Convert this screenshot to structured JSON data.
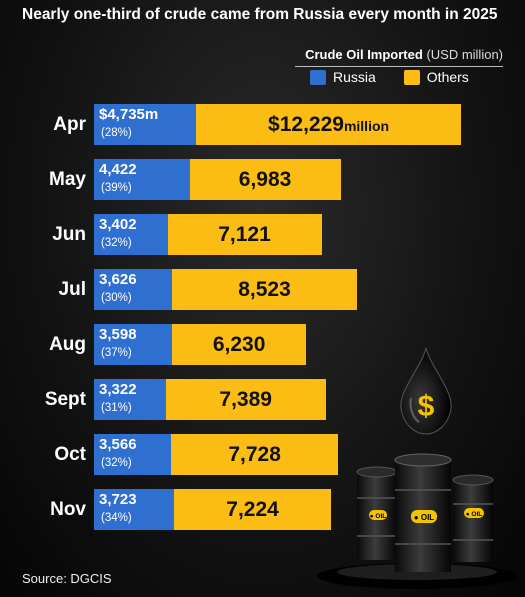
{
  "chart_data": {
    "type": "bar",
    "stacked": true,
    "orientation": "horizontal",
    "title": "Nearly one-third of crude came from Russia every month in 2025",
    "legend_title": "Crude Oil Imported",
    "legend_unit": "(USD million)",
    "legend_placement": "top-right",
    "categories": [
      "Apr",
      "May",
      "Jun",
      "Jul",
      "Aug",
      "Sept",
      "Oct",
      "Nov"
    ],
    "series": [
      {
        "name": "Russia",
        "color": "#2f6fd0",
        "values": [
          4735,
          4422,
          3402,
          3626,
          3598,
          3322,
          3566,
          3723
        ],
        "labels": [
          "$4,735m",
          "4,422",
          "3,402",
          "3,626",
          "3,598",
          "3,322",
          "3,566",
          "3,723"
        ],
        "share_labels": [
          "(28%)",
          "(39%)",
          "(32%)",
          "(30%)",
          "(37%)",
          "(31%)",
          "(32%)",
          "(34%)"
        ]
      },
      {
        "name": "Others",
        "color": "#fbbc13",
        "values": [
          12229,
          6983,
          7121,
          8523,
          6230,
          7389,
          7728,
          7224
        ],
        "labels": [
          "$12,229",
          "6,983",
          "7,121",
          "8,523",
          "6,230",
          "7,389",
          "7,728",
          "7,224"
        ],
        "label_suffix": [
          "million",
          "",
          "",
          "",
          "",
          "",
          "",
          ""
        ]
      }
    ],
    "grid": false
  },
  "source": "Source: DGCIS",
  "icons": [
    "oil-drop-dollar-icon",
    "oil-barrels-icon"
  ]
}
